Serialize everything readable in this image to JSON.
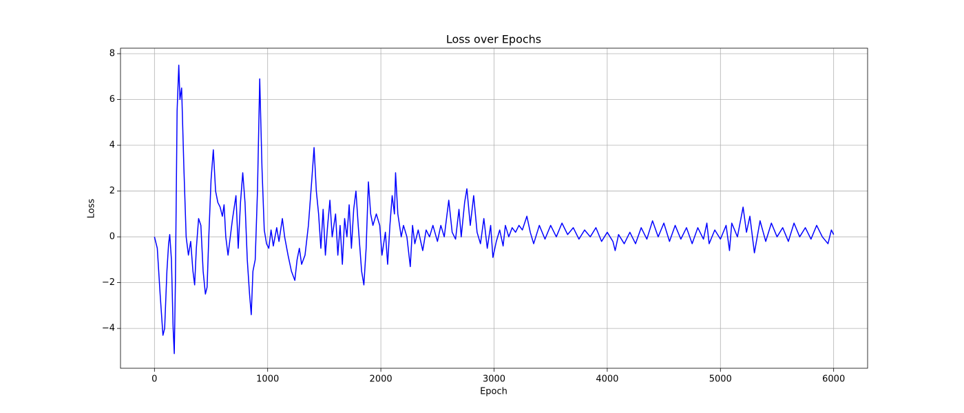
{
  "chart_data": {
    "type": "line",
    "title": "Loss over Epochs",
    "x_label": "Epoch",
    "y_label": "Loss",
    "x": [
      0,
      25,
      50,
      75,
      90,
      110,
      125,
      135,
      150,
      165,
      175,
      185,
      200,
      215,
      225,
      240,
      260,
      280,
      300,
      320,
      340,
      355,
      370,
      390,
      410,
      430,
      450,
      465,
      480,
      500,
      520,
      540,
      560,
      580,
      600,
      615,
      630,
      650,
      670,
      690,
      720,
      740,
      760,
      780,
      800,
      820,
      840,
      855,
      870,
      890,
      910,
      930,
      950,
      970,
      990,
      1010,
      1030,
      1050,
      1080,
      1100,
      1130,
      1150,
      1180,
      1210,
      1240,
      1260,
      1280,
      1300,
      1330,
      1360,
      1390,
      1410,
      1430,
      1450,
      1470,
      1490,
      1510,
      1530,
      1550,
      1570,
      1600,
      1620,
      1640,
      1660,
      1680,
      1700,
      1720,
      1740,
      1760,
      1780,
      1800,
      1830,
      1850,
      1870,
      1890,
      1910,
      1930,
      1960,
      1990,
      2010,
      2040,
      2060,
      2080,
      2100,
      2120,
      2130,
      2150,
      2180,
      2200,
      2230,
      2260,
      2280,
      2300,
      2330,
      2370,
      2400,
      2430,
      2460,
      2500,
      2530,
      2560,
      2600,
      2630,
      2660,
      2690,
      2710,
      2740,
      2760,
      2790,
      2820,
      2850,
      2880,
      2910,
      2940,
      2970,
      2990,
      3020,
      3050,
      3080,
      3100,
      3130,
      3160,
      3190,
      3220,
      3250,
      3290,
      3320,
      3350,
      3400,
      3450,
      3500,
      3550,
      3600,
      3650,
      3700,
      3750,
      3800,
      3850,
      3900,
      3950,
      4000,
      4050,
      4070,
      4100,
      4150,
      4200,
      4250,
      4300,
      4350,
      4400,
      4450,
      4500,
      4550,
      4600,
      4650,
      4700,
      4750,
      4800,
      4850,
      4880,
      4900,
      4950,
      5000,
      5050,
      5080,
      5100,
      5150,
      5200,
      5230,
      5260,
      5300,
      5350,
      5400,
      5450,
      5500,
      5550,
      5600,
      5650,
      5700,
      5750,
      5800,
      5850,
      5900,
      5950,
      5980,
      6000
    ],
    "series": [
      {
        "color": "#0000ff",
        "values": [
          0,
          -0.5,
          -2.5,
          -4.3,
          -4.0,
          -1.5,
          -0.3,
          0.1,
          -1,
          -4,
          -5.1,
          -2,
          5.5,
          7.5,
          6,
          6.5,
          3,
          0,
          -0.8,
          -0.2,
          -1.5,
          -2.1,
          -0.5,
          0.8,
          0.5,
          -1.5,
          -2.5,
          -2.2,
          0,
          2.5,
          3.8,
          2,
          1.5,
          1.3,
          0.9,
          1.4,
          0,
          -0.8,
          0,
          0.8,
          1.8,
          -0.5,
          1.5,
          2.8,
          1.5,
          -1,
          -2.5,
          -3.4,
          -1.5,
          -1,
          2,
          6.9,
          3,
          0.3,
          -0.3,
          -0.5,
          0.3,
          -0.4,
          0.4,
          -0.2,
          0.8,
          0,
          -0.8,
          -1.5,
          -1.9,
          -1,
          -0.5,
          -1.2,
          -0.8,
          0.5,
          2.5,
          3.9,
          2,
          1,
          -0.5,
          1.2,
          -0.8,
          0.5,
          1.6,
          0,
          1,
          -0.8,
          0.5,
          -1.2,
          0.8,
          0,
          1.4,
          -0.5,
          1.2,
          2,
          0.5,
          -1.5,
          -2.1,
          -0.5,
          2.4,
          1,
          0.5,
          1,
          0.5,
          -0.8,
          0.2,
          -1.2,
          0.5,
          1.8,
          1,
          2.8,
          1,
          0,
          0.5,
          0,
          -1.3,
          0.5,
          -0.3,
          0.3,
          -0.6,
          0.3,
          0,
          0.5,
          -0.2,
          0.5,
          0,
          1.6,
          0.2,
          -0.1,
          1.2,
          0,
          1.5,
          2.1,
          0.5,
          1.8,
          0.2,
          -0.3,
          0.8,
          -0.5,
          0.5,
          -0.9,
          -0.2,
          0.3,
          -0.4,
          0.5,
          0,
          0.4,
          0.2,
          0.5,
          0.3,
          0.9,
          0.2,
          -0.3,
          0.5,
          -0.1,
          0.5,
          0,
          0.6,
          0.1,
          0.4,
          -0.1,
          0.3,
          0,
          0.4,
          -0.2,
          0.2,
          -0.2,
          -0.6,
          0.1,
          -0.3,
          0.2,
          -0.3,
          0.4,
          -0.1,
          0.7,
          0,
          0.6,
          -0.2,
          0.5,
          -0.1,
          0.4,
          -0.3,
          0.4,
          -0.1,
          0.6,
          -0.3,
          0.3,
          -0.1,
          0.5,
          -0.6,
          0.6,
          0,
          1.3,
          0.2,
          0.9,
          -0.7,
          0.7,
          -0.2,
          0.6,
          0,
          0.4,
          -0.2,
          0.6,
          0,
          0.4,
          -0.1,
          0.5,
          0,
          -0.3,
          0.3,
          0.1
        ]
      }
    ],
    "xlim": [
      -300,
      6300
    ],
    "ylim": [
      -5.74,
      8.24
    ],
    "xticks": [
      0,
      1000,
      2000,
      3000,
      4000,
      5000,
      6000
    ],
    "yticks": [
      {
        "value": -4,
        "label": "−4"
      },
      {
        "value": -2,
        "label": "−2"
      },
      0,
      2,
      4,
      6,
      8
    ],
    "grid": true
  }
}
